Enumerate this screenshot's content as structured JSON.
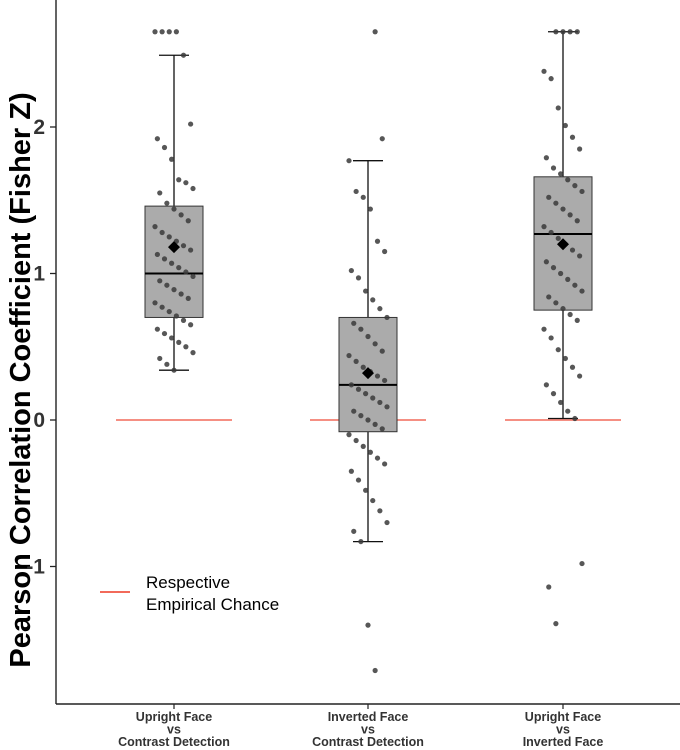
{
  "chart_data": {
    "type": "box",
    "ylabel": "Pearson Correlation Coefficient (Fisher Z)",
    "xlabel": "",
    "ylim": [
      -1.9,
      2.85
    ],
    "yticks": [
      "-1",
      "0",
      "1",
      "2"
    ],
    "categories": [
      {
        "lines": [
          "Upright Face",
          "vs",
          "Contrast Detection"
        ]
      },
      {
        "lines": [
          "Inverted Face",
          "vs",
          "Contrast Detection"
        ]
      },
      {
        "lines": [
          "Upright Face",
          "vs",
          "Inverted Face"
        ]
      }
    ],
    "boxes": [
      {
        "whisker_low": 0.34,
        "q1": 0.7,
        "median": 1.0,
        "q3": 1.46,
        "whisker_high": 2.49,
        "mean": 1.18
      },
      {
        "whisker_low": -0.83,
        "q1": -0.08,
        "median": 0.24,
        "q3": 0.7,
        "whisker_high": 1.77,
        "mean": 0.32
      },
      {
        "whisker_low": 0.01,
        "q1": 0.75,
        "median": 1.27,
        "q3": 1.66,
        "whisker_high": 2.65,
        "mean": 1.2
      }
    ],
    "chance_level": [
      0,
      0,
      0
    ],
    "points": [
      [
        2.65,
        2.65,
        2.65,
        2.65,
        2.49,
        2.02,
        1.92,
        1.86,
        1.78,
        1.64,
        1.62,
        1.58,
        1.55,
        1.48,
        1.44,
        1.4,
        1.36,
        1.32,
        1.28,
        1.25,
        1.22,
        1.19,
        1.16,
        1.13,
        1.1,
        1.07,
        1.04,
        1.01,
        0.98,
        0.95,
        0.92,
        0.89,
        0.86,
        0.83,
        0.8,
        0.77,
        0.74,
        0.71,
        0.68,
        0.65,
        0.62,
        0.59,
        0.56,
        0.53,
        0.5,
        0.46,
        0.42,
        0.38,
        0.34
      ],
      [
        2.65,
        1.92,
        1.77,
        1.56,
        1.52,
        1.44,
        1.22,
        1.15,
        1.02,
        0.97,
        0.88,
        0.82,
        0.76,
        0.7,
        0.66,
        0.62,
        0.57,
        0.52,
        0.47,
        0.44,
        0.4,
        0.36,
        0.33,
        0.3,
        0.27,
        0.24,
        0.21,
        0.18,
        0.15,
        0.12,
        0.09,
        0.06,
        0.03,
        0.0,
        -0.03,
        -0.06,
        -0.1,
        -0.14,
        -0.18,
        -0.22,
        -0.26,
        -0.3,
        -0.35,
        -0.41,
        -0.48,
        -0.55,
        -0.62,
        -0.7,
        -0.76,
        -0.83,
        -1.4,
        -1.71
      ],
      [
        2.65,
        2.65,
        2.65,
        2.65,
        2.38,
        2.33,
        2.13,
        2.01,
        1.93,
        1.85,
        1.79,
        1.72,
        1.68,
        1.64,
        1.6,
        1.56,
        1.52,
        1.48,
        1.44,
        1.4,
        1.36,
        1.32,
        1.28,
        1.24,
        1.2,
        1.16,
        1.12,
        1.08,
        1.04,
        1.0,
        0.96,
        0.92,
        0.88,
        0.84,
        0.8,
        0.76,
        0.72,
        0.68,
        0.62,
        0.56,
        0.48,
        0.42,
        0.36,
        0.3,
        0.24,
        0.18,
        0.12,
        0.06,
        0.01,
        -0.98,
        -1.14,
        -1.39
      ]
    ],
    "legend": {
      "entries": [
        [
          "Respective",
          "Empirical Chance"
        ]
      ],
      "color": "#f26a5a",
      "position": "bottom-left"
    },
    "colors": {
      "box_fill": "#ababab",
      "point": "#3a3a3a",
      "chance_line": "#f26a5a"
    }
  }
}
